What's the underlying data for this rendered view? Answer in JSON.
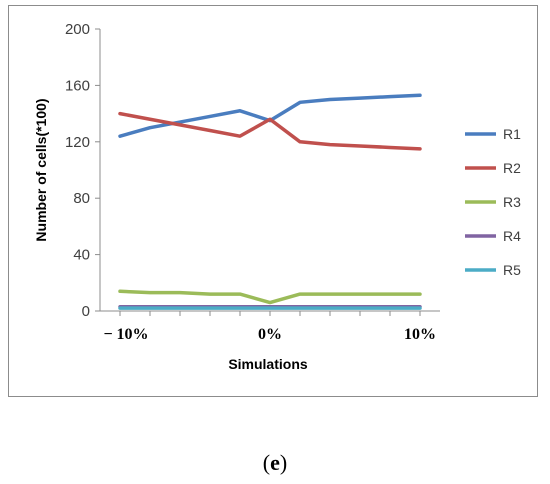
{
  "caption": {
    "open": "(",
    "letter": "e",
    "close": ")"
  },
  "chart_data": {
    "type": "line",
    "title": "",
    "xlabel": "Simulations",
    "ylabel": "Number of cells(*100)",
    "ylim": [
      0,
      200
    ],
    "yticks": [
      0,
      40,
      80,
      120,
      160,
      200
    ],
    "x_tick_labels": [
      "− 10%",
      "0%",
      "10%"
    ],
    "x": [
      -10,
      -8,
      -6,
      -4,
      -2,
      0,
      2,
      4,
      6,
      8,
      10
    ],
    "legend_position": "right",
    "series": [
      {
        "name": "R1",
        "color": "#4a7dbf",
        "values": [
          124,
          130,
          134,
          138,
          142,
          135,
          148,
          150,
          151,
          152,
          153
        ]
      },
      {
        "name": "R2",
        "color": "#c0504d",
        "values": [
          140,
          136,
          132,
          128,
          124,
          136,
          120,
          118,
          117,
          116,
          115
        ]
      },
      {
        "name": "R3",
        "color": "#9bbb59",
        "values": [
          14,
          13,
          13,
          12,
          12,
          6,
          12,
          12,
          12,
          12,
          12
        ]
      },
      {
        "name": "R4",
        "color": "#8064a2",
        "values": [
          3,
          3,
          3,
          3,
          3,
          3,
          3,
          3,
          3,
          3,
          3
        ]
      },
      {
        "name": "R5",
        "color": "#4bacc6",
        "values": [
          2,
          2,
          2,
          2,
          2,
          2,
          2,
          2,
          2,
          2,
          2
        ]
      }
    ]
  }
}
